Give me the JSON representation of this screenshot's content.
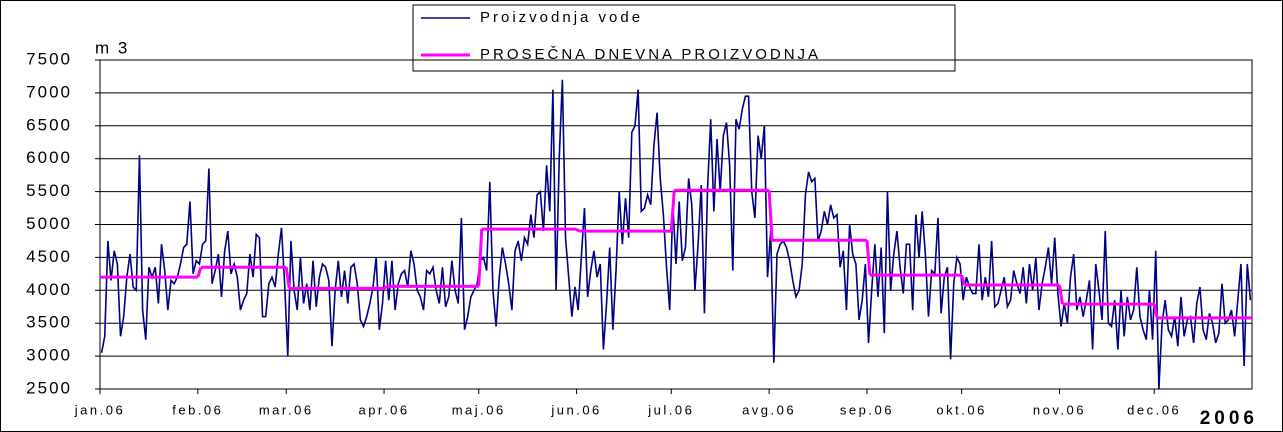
{
  "chart_data": {
    "type": "line",
    "y_label": "m 3",
    "annotation": "2006",
    "xlim": [
      0,
      365
    ],
    "xticks": [
      {
        "value": 0,
        "label": "jan.06"
      },
      {
        "value": 31,
        "label": "feb.06"
      },
      {
        "value": 59,
        "label": "mar.06"
      },
      {
        "value": 90,
        "label": "apr.06"
      },
      {
        "value": 120,
        "label": "maj.06"
      },
      {
        "value": 151,
        "label": "jun.06"
      },
      {
        "value": 181,
        "label": "jul.06"
      },
      {
        "value": 212,
        "label": "avg.06"
      },
      {
        "value": 243,
        "label": "sep.06"
      },
      {
        "value": 273,
        "label": "okt.06"
      },
      {
        "value": 304,
        "label": "nov.06"
      },
      {
        "value": 334,
        "label": "dec.06"
      }
    ],
    "ylim": [
      2500,
      7500
    ],
    "yticks": [
      2500,
      3000,
      3500,
      4000,
      4500,
      5000,
      5500,
      6000,
      6500,
      7000,
      7500
    ],
    "grid": true,
    "legend": "top",
    "series": [
      {
        "name": "Proizvodnja vode",
        "color": "#000080",
        "values": [
          3050,
          3300,
          4750,
          4150,
          4600,
          4400,
          3300,
          3600,
          4200,
          4550,
          4050,
          4000,
          6050,
          3700,
          3250,
          4350,
          4200,
          4350,
          3800,
          4700,
          4300,
          3700,
          4150,
          4100,
          4200,
          4400,
          4650,
          4700,
          5350,
          4250,
          4450,
          4400,
          4700,
          4750,
          5850,
          4100,
          4300,
          4550,
          3900,
          4600,
          4900,
          4250,
          4400,
          4200,
          3700,
          3850,
          3950,
          4550,
          4200,
          4850,
          4800,
          3600,
          3600,
          4100,
          4200,
          4050,
          4550,
          4950,
          4100,
          3000,
          4750,
          4000,
          3700,
          4500,
          3800,
          4100,
          3700,
          4450,
          3750,
          4200,
          4400,
          4350,
          4150,
          3150,
          4000,
          4450,
          3900,
          4300,
          3800,
          4350,
          4400,
          4100,
          3550,
          3450,
          3600,
          3800,
          4050,
          4500,
          3400,
          3800,
          4450,
          3850,
          4450,
          3700,
          4100,
          4250,
          4300,
          4050,
          4600,
          4400,
          4000,
          3900,
          3700,
          4300,
          4250,
          4350,
          4000,
          3800,
          4350,
          3750,
          3900,
          4450,
          4000,
          3800,
          5100,
          3400,
          3600,
          3900,
          4000,
          4100,
          4450,
          4500,
          4300,
          5650,
          4000,
          3450,
          4200,
          4650,
          4400,
          4100,
          3700,
          4600,
          4750,
          4450,
          4800,
          4700,
          5150,
          4800,
          5450,
          5500,
          4900,
          5900,
          5200,
          7050,
          4000,
          6000,
          7200,
          4800,
          4200,
          3600,
          4050,
          3700,
          4500,
          5250,
          3900,
          4300,
          4600,
          4200,
          4400,
          3100,
          3800,
          4650,
          3400,
          4300,
          5500,
          4700,
          5400,
          4800,
          6400,
          6500,
          7050,
          5200,
          5250,
          5450,
          5300,
          6200,
          6700,
          5700,
          5150,
          4350,
          3700,
          5300,
          4400,
          5350,
          4450,
          4650,
          5700,
          5300,
          4000,
          4700,
          5600,
          3650,
          5550,
          6600,
          5200,
          6300,
          5500,
          6350,
          6550,
          5900,
          4300,
          6600,
          6450,
          6750,
          6950,
          6950,
          5500,
          5100,
          6350,
          6000,
          6500,
          4200,
          4900,
          2900,
          4550,
          4700,
          4750,
          4650,
          4450,
          4150,
          3900,
          4000,
          4400,
          5450,
          5800,
          5650,
          5700,
          4750,
          4900,
          5200,
          5000,
          5300,
          5100,
          5150,
          4350,
          4600,
          3700,
          5000,
          4550,
          4400,
          3550,
          3850,
          4400,
          3200,
          4000,
          4700,
          3900,
          4650,
          3350,
          5500,
          4000,
          4550,
          4900,
          4350,
          3950,
          4700,
          4700,
          3700,
          5150,
          4500,
          5200,
          4550,
          3600,
          4300,
          4250,
          5100,
          3650,
          4200,
          4350,
          2950,
          4100,
          4500,
          4400,
          3850,
          4200,
          4050,
          3950,
          3950,
          4700,
          3850,
          4200,
          3900,
          4750,
          3750,
          3800,
          4000,
          4200,
          3750,
          3850,
          4300,
          4100,
          3950,
          4350,
          3800,
          4400,
          4000,
          4500,
          3700,
          4100,
          4350,
          4650,
          4100,
          4800,
          3950,
          3450,
          3800,
          3500,
          4200,
          4550,
          3700,
          3900,
          3600,
          3850,
          4150,
          3100,
          4400,
          4000,
          3550,
          4900,
          3500,
          3450,
          3850,
          3100,
          4000,
          3300,
          3900,
          3550,
          3700,
          4350,
          3600,
          3400,
          3250,
          4000,
          3250,
          4600,
          2500,
          3500,
          3850,
          3400,
          3300,
          3600,
          3150,
          3900,
          3300,
          3550,
          3600,
          3200,
          3800,
          4050,
          3400,
          3250,
          3650,
          3500,
          3200,
          3350,
          4100,
          3500,
          3550,
          3700,
          3300,
          3850,
          4400,
          2850,
          4400,
          3850
        ]
      },
      {
        "name": "PROSEČNA DNEVNA PROIZVODNJA",
        "color": "#ff00ff",
        "step": true,
        "x": [
          0,
          31,
          59,
          90,
          120,
          151,
          181,
          212,
          243,
          273,
          304,
          334
        ],
        "values": [
          4200,
          4350,
          4030,
          4060,
          4930,
          4900,
          5520,
          4760,
          4230,
          4080,
          3790,
          3580
        ]
      }
    ]
  }
}
